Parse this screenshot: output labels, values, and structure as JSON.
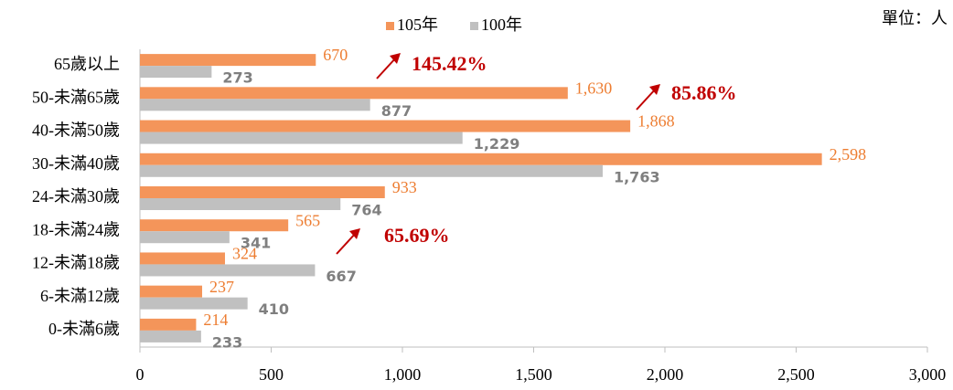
{
  "chart_data": {
    "type": "bar",
    "orientation": "horizontal",
    "unit": "單位：人",
    "categories": [
      "65歲以上",
      "50-未滿65歲",
      "40-未滿50歲",
      "30-未滿40歲",
      "24-未滿30歲",
      "18-未滿24歲",
      "12-未滿18歲",
      "6-未滿12歲",
      "0-未滿6歲"
    ],
    "series": [
      {
        "name": "105年",
        "color": "#f4955a",
        "values": [
          670,
          1630,
          1868,
          2598,
          933,
          565,
          324,
          237,
          214
        ],
        "value_labels": [
          "670",
          "1,630",
          "1,868",
          "2,598",
          "933",
          "565",
          "324",
          "237",
          "214"
        ]
      },
      {
        "name": "100年",
        "color": "#c0c0c0",
        "values": [
          273,
          877,
          1229,
          1763,
          764,
          341,
          667,
          410,
          233
        ],
        "value_labels": [
          "273",
          "877",
          "1,229",
          "1,763",
          "764",
          "341",
          "667",
          "410",
          "233"
        ]
      }
    ],
    "annotations": [
      "145.42%",
      "85.86%",
      "65.69%"
    ],
    "xlim": [
      0,
      3000
    ],
    "xticks": [
      0,
      500,
      {
        "value": 1000,
        "label": "1,000"
      },
      {
        "value": 1500,
        "label": "1,500"
      },
      {
        "value": 2000,
        "label": "2,000"
      },
      {
        "value": 2500,
        "label": "2,500"
      },
      {
        "value": 3000,
        "label": "3,000"
      }
    ],
    "legend": "top"
  }
}
